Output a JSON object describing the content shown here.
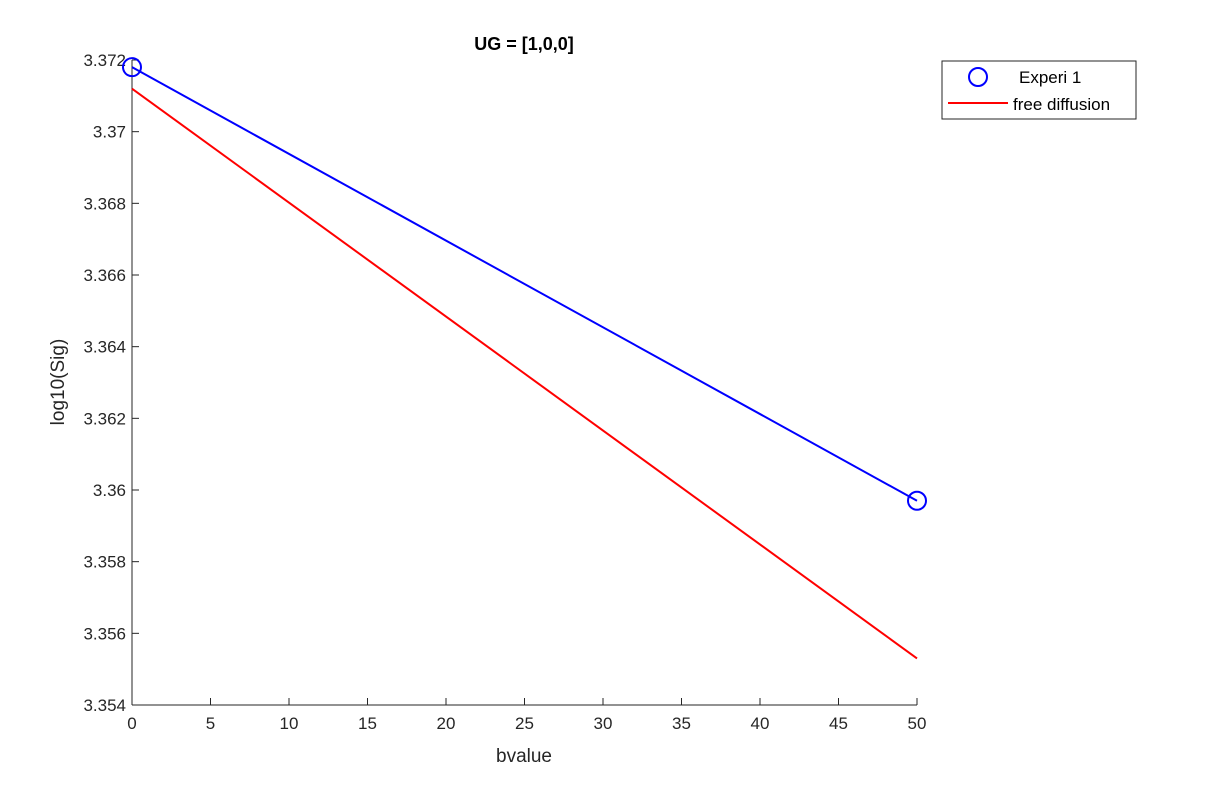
{
  "chart_data": {
    "type": "line",
    "title": "UG = [1,0,0]",
    "xlabel": "bvalue",
    "ylabel": "log10(Sig)",
    "xlim": [
      0,
      50
    ],
    "ylim": [
      3.354,
      3.372
    ],
    "xticks": [
      0,
      5,
      10,
      15,
      20,
      25,
      30,
      35,
      40,
      45,
      50
    ],
    "yticks": [
      3.354,
      3.356,
      3.358,
      3.36,
      3.362,
      3.364,
      3.366,
      3.368,
      3.37,
      3.372
    ],
    "xtick_labels": [
      "0",
      "5",
      "10",
      "15",
      "20",
      "25",
      "30",
      "35",
      "40",
      "45",
      "50"
    ],
    "ytick_labels": [
      "3.354",
      "3.356",
      "3.358",
      "3.36",
      "3.362",
      "3.364",
      "3.366",
      "3.368",
      "3.37",
      "3.372"
    ],
    "grid": false,
    "legend_position": "top-right",
    "series": [
      {
        "name": "Experi 1",
        "color": "#0000ff",
        "marker": "circle",
        "x": [
          0,
          50
        ],
        "y": [
          3.3718,
          3.3597
        ]
      },
      {
        "name": "free diffusion",
        "color": "#ff0000",
        "marker": "none",
        "x": [
          0,
          50
        ],
        "y": [
          3.3712,
          3.3553
        ]
      }
    ]
  }
}
